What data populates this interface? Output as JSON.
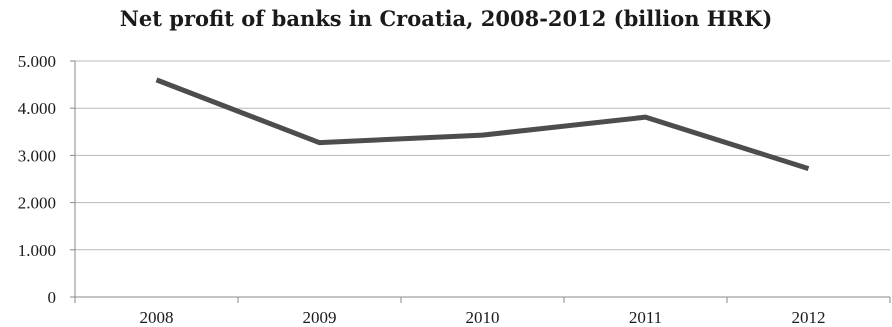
{
  "chart_data": {
    "type": "line",
    "title": "Net profit of banks in Croatia, 2008-2012 (billion HRK)",
    "categories": [
      "2008",
      "2009",
      "2010",
      "2011",
      "2012"
    ],
    "series": [
      {
        "values": [
          4.6,
          3.27,
          3.43,
          3.81,
          2.72
        ]
      }
    ],
    "ylim": [
      0,
      5
    ],
    "y_ticks": [
      0,
      1,
      2,
      3,
      4,
      5
    ],
    "y_tick_labels": [
      "0",
      "1.000",
      "2.000",
      "3.000",
      "4.000",
      "5.000"
    ],
    "grid": true,
    "line_color": "#4d4d4d"
  }
}
